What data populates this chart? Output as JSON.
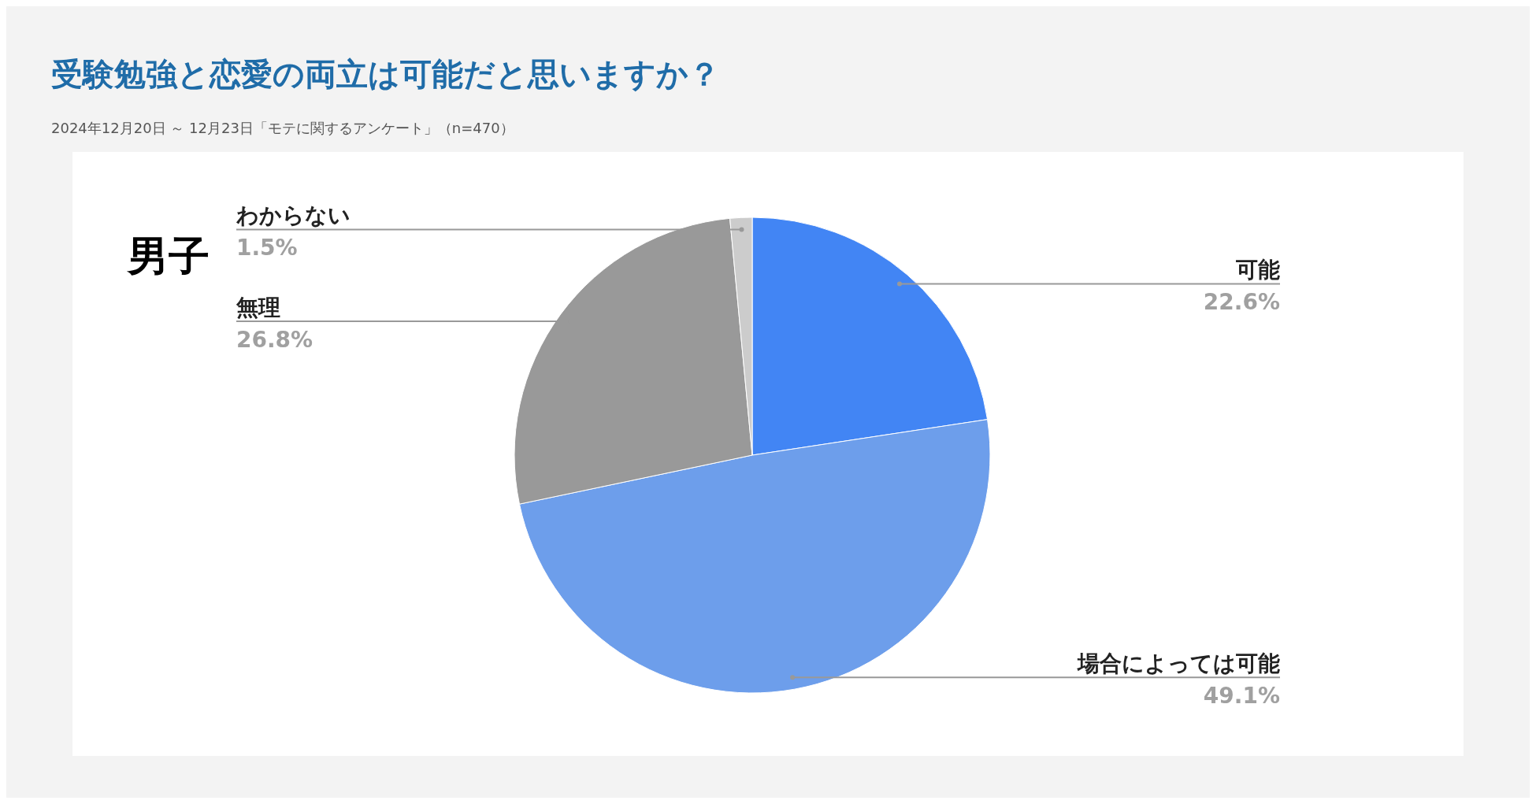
{
  "chart_data": {
    "type": "pie",
    "title": "受験勉強と恋愛の両立は可能だと思いますか？",
    "subtitle": "2024年12月20日 ～ 12月23日「モテに関するアンケート」（n=470）",
    "annotations": [
      "男子"
    ],
    "categories": [
      "可能",
      "場合によっては可能",
      "無理",
      "わからない"
    ],
    "values": [
      22.6,
      49.1,
      26.8,
      1.5
    ],
    "colors": [
      "#4285f4",
      "#6d9eeb",
      "#999999",
      "#cccccc"
    ],
    "value_labels": [
      "22.6%",
      "49.1%",
      "26.8%",
      "1.5%"
    ],
    "legend": false
  }
}
